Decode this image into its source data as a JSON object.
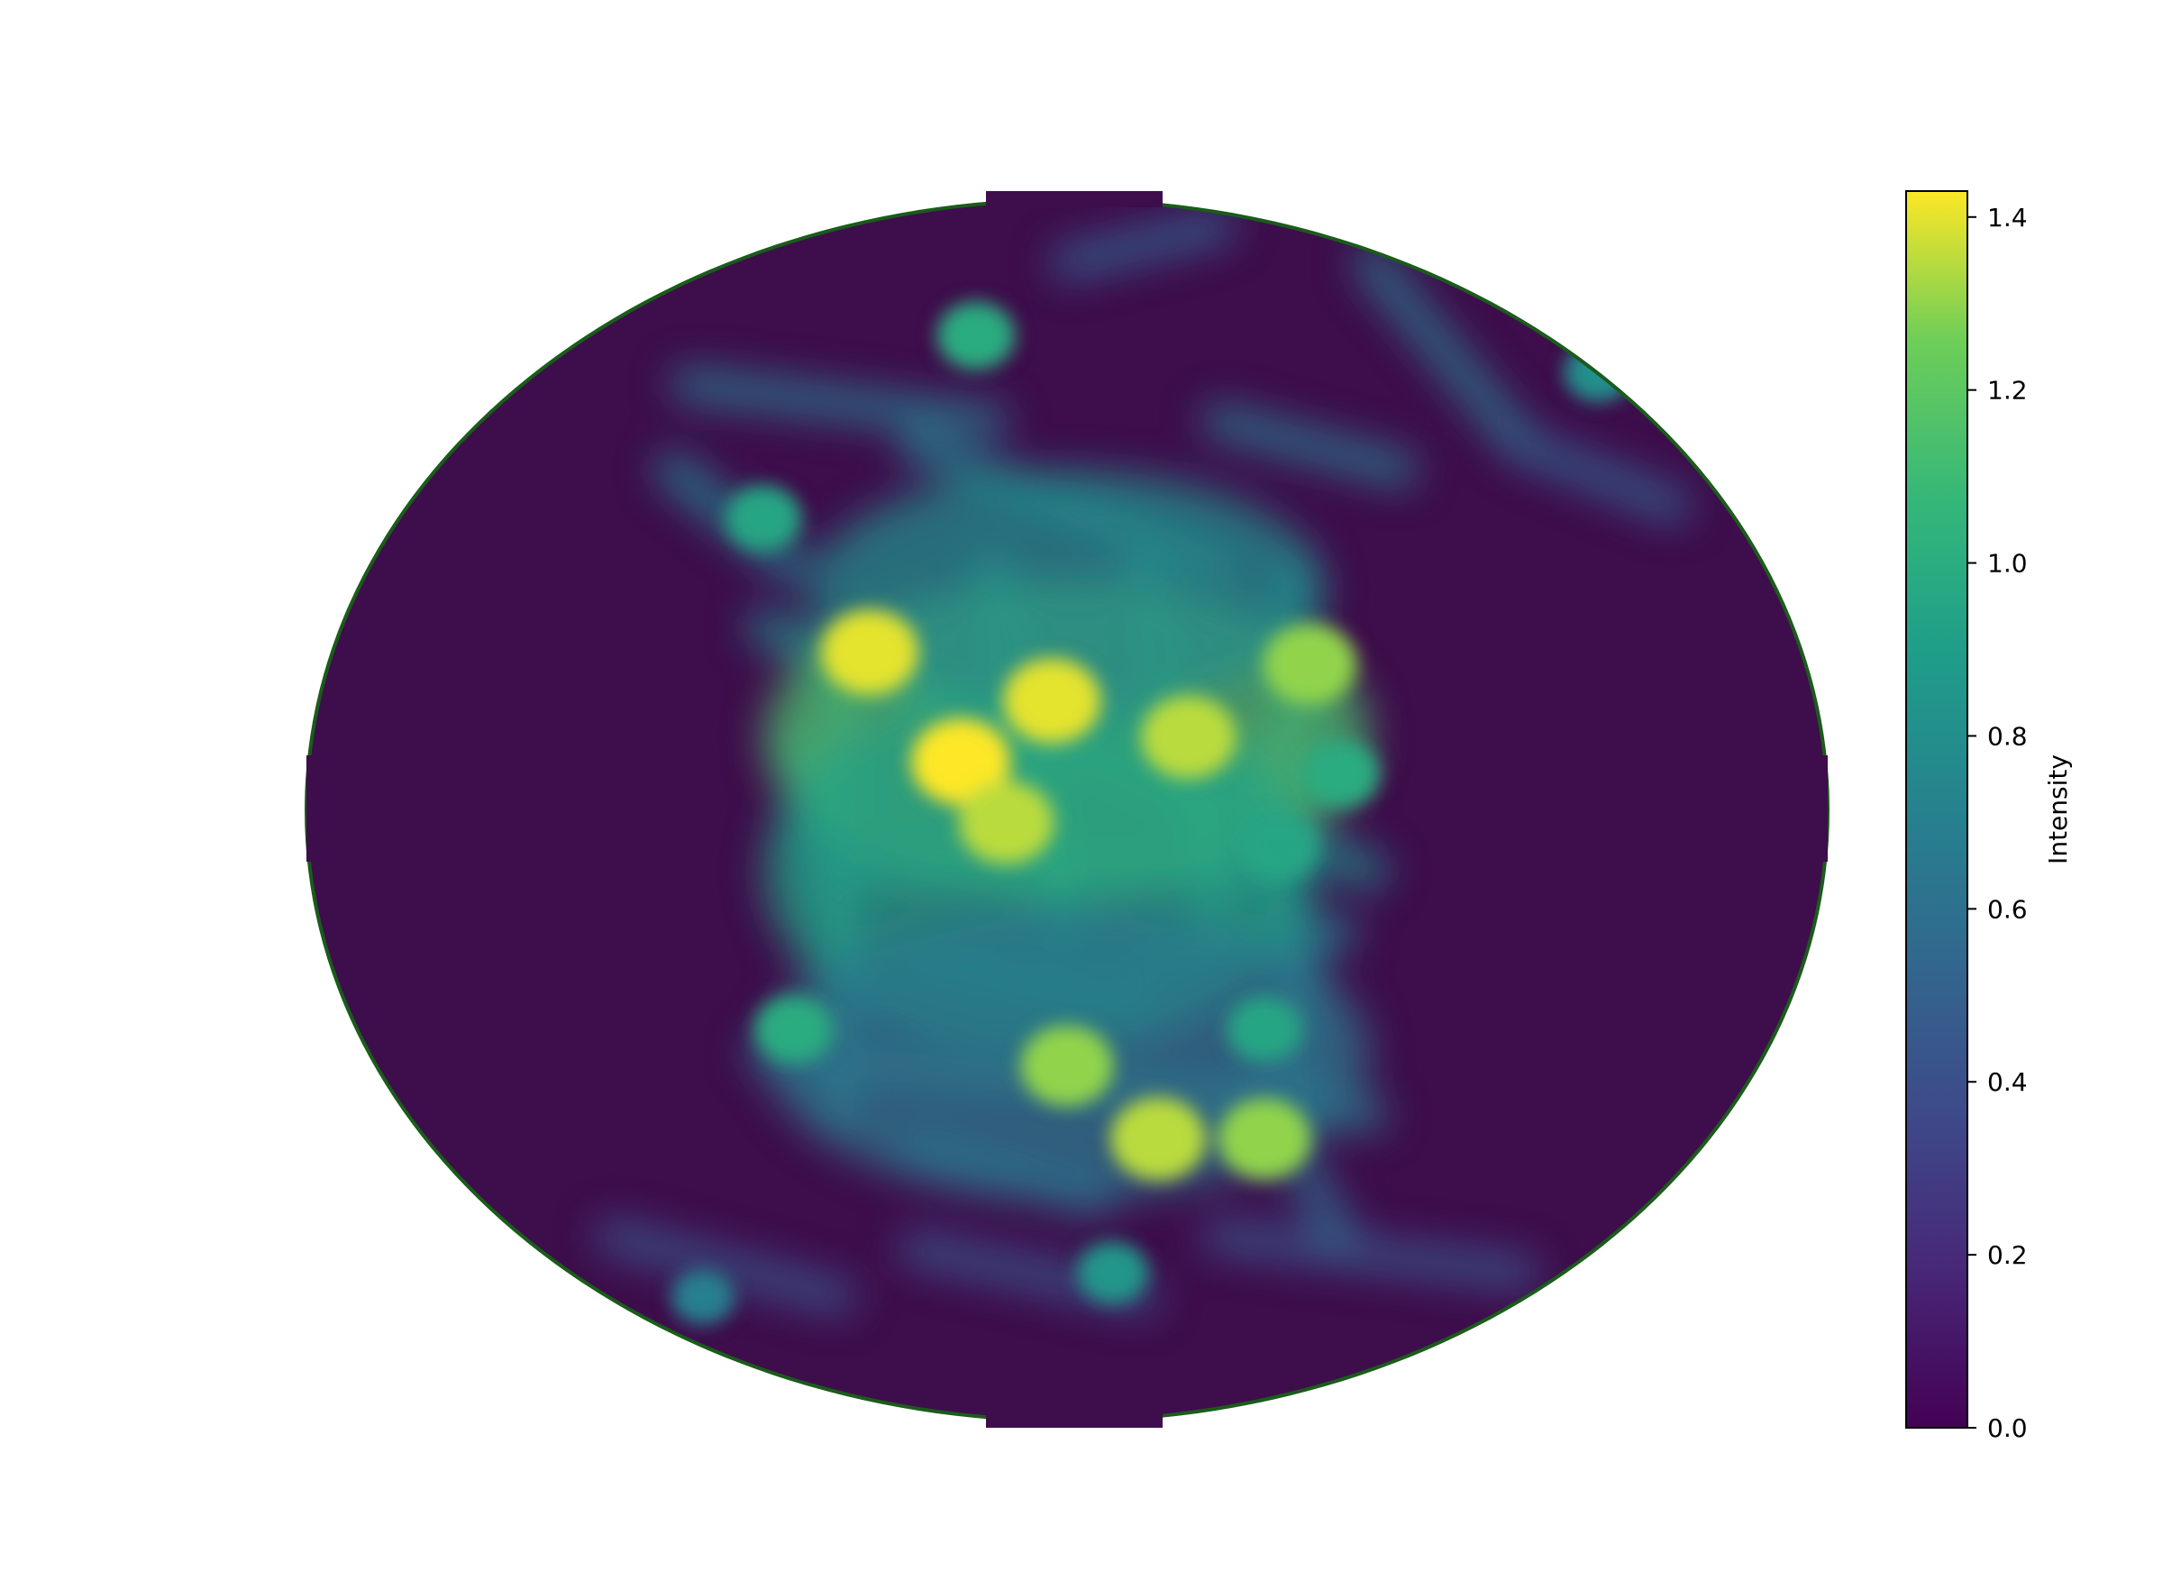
{
  "chart_data": {
    "type": "heatmap",
    "title": "",
    "xlabel": "",
    "ylabel": "",
    "projection": "elliptical (orthographic-style) map, clipped to ellipse",
    "colormap": "viridis",
    "colorbar": {
      "label": "Intensity",
      "min": 0.0,
      "max": 1.43,
      "ticks": [
        0.0,
        0.2,
        0.4,
        0.6,
        0.8,
        1.0,
        1.2,
        1.4
      ],
      "tick_labels": [
        "0.0",
        "0.2",
        "0.4",
        "0.6",
        "0.8",
        "1.0",
        "1.2",
        "1.4"
      ],
      "placement": "right"
    },
    "grid": false,
    "hotspots_normalized": [
      {
        "u": 0.43,
        "v": 0.46,
        "value": 1.43
      },
      {
        "u": 0.49,
        "v": 0.41,
        "value": 1.4
      },
      {
        "u": 0.46,
        "v": 0.51,
        "value": 1.35
      },
      {
        "u": 0.37,
        "v": 0.37,
        "value": 1.4
      },
      {
        "u": 0.58,
        "v": 0.44,
        "value": 1.35
      },
      {
        "u": 0.66,
        "v": 0.38,
        "value": 1.3
      },
      {
        "u": 0.5,
        "v": 0.71,
        "value": 1.3
      },
      {
        "u": 0.56,
        "v": 0.77,
        "value": 1.35
      },
      {
        "u": 0.63,
        "v": 0.77,
        "value": 1.3
      },
      {
        "u": 0.44,
        "v": 0.11,
        "value": 1.0
      },
      {
        "u": 0.3,
        "v": 0.26,
        "value": 0.95
      },
      {
        "u": 0.85,
        "v": 0.14,
        "value": 0.8
      },
      {
        "u": 0.68,
        "v": 0.47,
        "value": 1.0
      },
      {
        "u": 0.64,
        "v": 0.53,
        "value": 0.95
      },
      {
        "u": 0.32,
        "v": 0.68,
        "value": 1.0
      },
      {
        "u": 0.63,
        "v": 0.68,
        "value": 0.95
      },
      {
        "u": 0.53,
        "v": 0.88,
        "value": 0.85
      },
      {
        "u": 0.26,
        "v": 0.9,
        "value": 0.7
      }
    ]
  },
  "colors": {
    "background": "#ffffff",
    "outline": "#1a5c1a",
    "low": "#440154",
    "high": "#fde725"
  }
}
